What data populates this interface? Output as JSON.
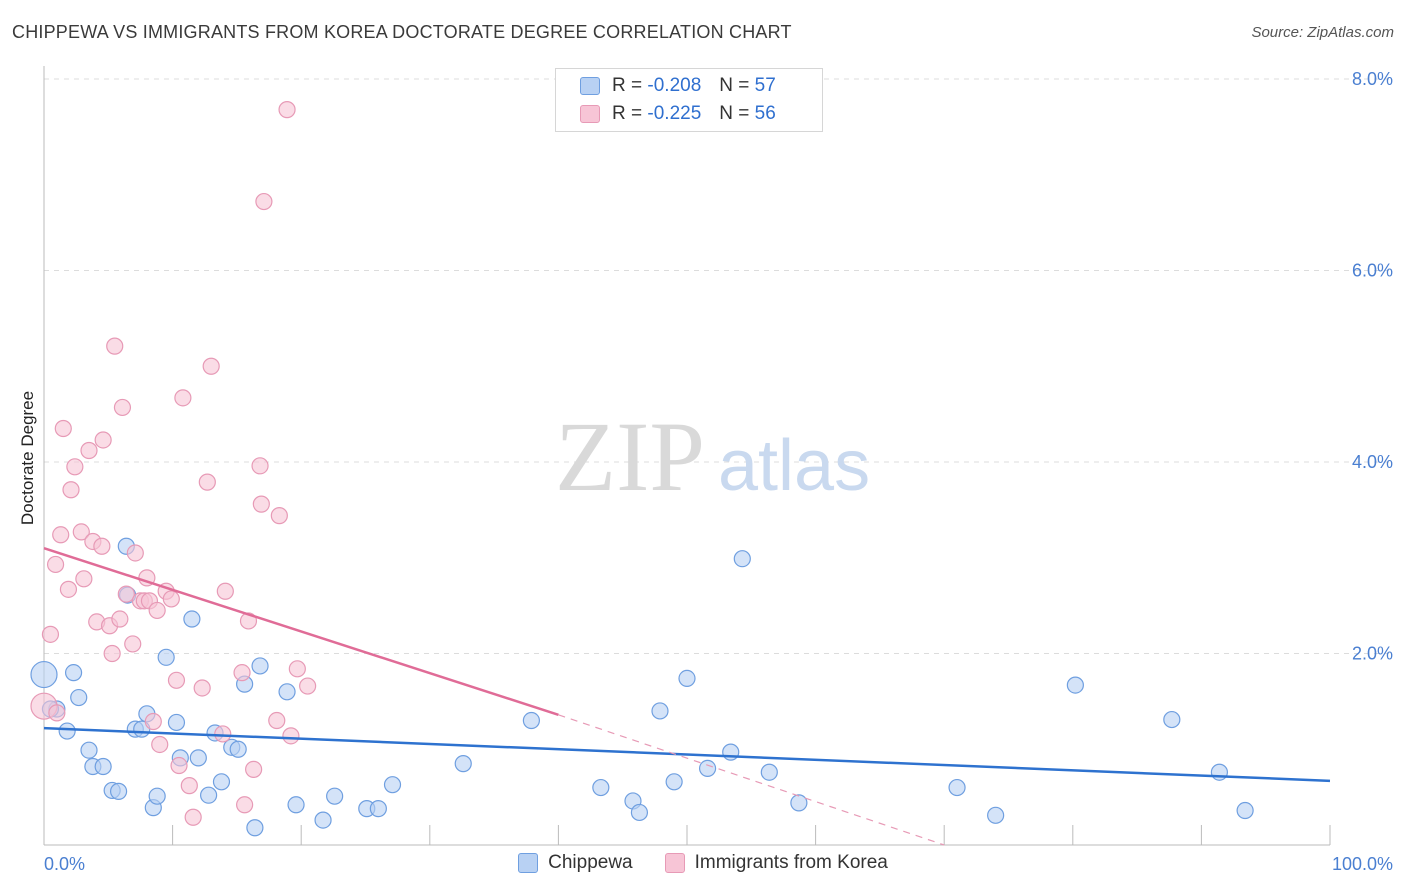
{
  "title": "CHIPPEWA VS IMMIGRANTS FROM KOREA DOCTORATE DEGREE CORRELATION CHART",
  "source": "Source: ZipAtlas.com",
  "watermark": {
    "zip": "ZIP",
    "atlas": "atlas"
  },
  "legend": {
    "rows": [
      {
        "r_label": "R = ",
        "r_value": "-0.208",
        "n_label": "N = ",
        "n_value": "57"
      },
      {
        "r_label": "R = ",
        "r_value": "-0.225",
        "n_label": "N = ",
        "n_value": "56"
      }
    ]
  },
  "chart_data": {
    "type": "scatter",
    "title": "CHIPPEWA VS IMMIGRANTS FROM KOREA DOCTORATE DEGREE CORRELATION CHART",
    "xlabel": "",
    "ylabel": "Doctorate Degree",
    "xlim": [
      0,
      100
    ],
    "ylim": [
      0,
      8.0
    ],
    "x_tick_labels": [
      "0.0%",
      "100.0%"
    ],
    "y_ticks": [
      2.0,
      4.0,
      6.0,
      8.0
    ],
    "y_tick_labels": [
      "2.0%",
      "4.0%",
      "6.0%",
      "8.0%"
    ],
    "grid": true,
    "legend_position": "top-center",
    "series": [
      {
        "name": "Chippewa",
        "color": "#6f9fe0",
        "fill": "#b8d1f3",
        "trend": {
          "x0": 0,
          "y0": 1.22,
          "x1": 100,
          "y1": 0.67
        },
        "points": [
          [
            0.0,
            1.78
          ],
          [
            1.0,
            1.42
          ],
          [
            1.8,
            1.19
          ],
          [
            2.3,
            1.8
          ],
          [
            2.7,
            1.54
          ],
          [
            3.5,
            0.99
          ],
          [
            3.8,
            0.82
          ],
          [
            4.6,
            0.82
          ],
          [
            5.3,
            0.57
          ],
          [
            5.8,
            0.56
          ],
          [
            6.4,
            3.12
          ],
          [
            6.5,
            2.61
          ],
          [
            7.1,
            1.21
          ],
          [
            7.6,
            1.21
          ],
          [
            8.0,
            1.37
          ],
          [
            8.5,
            0.39
          ],
          [
            8.8,
            0.51
          ],
          [
            9.5,
            1.96
          ],
          [
            10.3,
            1.28
          ],
          [
            10.6,
            0.91
          ],
          [
            11.5,
            2.36
          ],
          [
            12.0,
            0.91
          ],
          [
            12.8,
            0.52
          ],
          [
            13.3,
            1.17
          ],
          [
            13.8,
            0.66
          ],
          [
            14.6,
            1.02
          ],
          [
            15.1,
            1.0
          ],
          [
            15.6,
            1.68
          ],
          [
            16.4,
            0.18
          ],
          [
            16.8,
            1.87
          ],
          [
            18.9,
            1.6
          ],
          [
            19.6,
            0.42
          ],
          [
            21.7,
            0.26
          ],
          [
            22.6,
            0.51
          ],
          [
            25.1,
            0.38
          ],
          [
            26.0,
            0.38
          ],
          [
            27.1,
            0.63
          ],
          [
            32.6,
            0.85
          ],
          [
            37.9,
            1.3
          ],
          [
            43.3,
            0.6
          ],
          [
            45.8,
            0.46
          ],
          [
            46.3,
            0.34
          ],
          [
            49.0,
            0.66
          ],
          [
            47.9,
            1.4
          ],
          [
            50.0,
            1.74
          ],
          [
            51.6,
            0.8
          ],
          [
            53.4,
            0.97
          ],
          [
            54.3,
            2.99
          ],
          [
            56.4,
            0.76
          ],
          [
            58.7,
            0.44
          ],
          [
            71.0,
            0.6
          ],
          [
            74.0,
            0.31
          ],
          [
            80.2,
            1.67
          ],
          [
            87.7,
            1.31
          ],
          [
            91.4,
            0.76
          ],
          [
            93.4,
            0.36
          ],
          [
            0.5,
            1.42
          ]
        ]
      },
      {
        "name": "Immigrants from Korea",
        "color": "#e79ab6",
        "fill": "#f7c5d6",
        "trend": {
          "x0": 0,
          "y0": 3.1,
          "x1": 40,
          "y1": 1.36,
          "dash_x1": 70,
          "dash_y1": 0.0
        },
        "points": [
          [
            0.0,
            1.45
          ],
          [
            0.5,
            2.2
          ],
          [
            0.9,
            2.93
          ],
          [
            1.0,
            1.38
          ],
          [
            1.3,
            3.24
          ],
          [
            1.5,
            4.35
          ],
          [
            1.9,
            2.67
          ],
          [
            2.1,
            3.71
          ],
          [
            2.4,
            3.95
          ],
          [
            2.9,
            3.27
          ],
          [
            3.1,
            2.78
          ],
          [
            3.5,
            4.12
          ],
          [
            3.8,
            3.17
          ],
          [
            4.1,
            2.33
          ],
          [
            4.5,
            3.12
          ],
          [
            4.6,
            4.23
          ],
          [
            5.1,
            2.29
          ],
          [
            5.3,
            2.0
          ],
          [
            5.5,
            5.21
          ],
          [
            5.9,
            2.36
          ],
          [
            6.1,
            4.57
          ],
          [
            6.4,
            2.62
          ],
          [
            6.9,
            2.1
          ],
          [
            7.1,
            3.05
          ],
          [
            7.5,
            2.55
          ],
          [
            7.8,
            2.55
          ],
          [
            8.0,
            2.79
          ],
          [
            8.2,
            2.55
          ],
          [
            8.5,
            1.29
          ],
          [
            8.8,
            2.45
          ],
          [
            9.0,
            1.05
          ],
          [
            9.5,
            2.65
          ],
          [
            9.9,
            2.57
          ],
          [
            10.3,
            1.72
          ],
          [
            10.5,
            0.83
          ],
          [
            10.8,
            4.67
          ],
          [
            11.3,
            0.62
          ],
          [
            11.6,
            0.29
          ],
          [
            12.3,
            1.64
          ],
          [
            12.7,
            3.79
          ],
          [
            13.0,
            5.0
          ],
          [
            13.9,
            1.16
          ],
          [
            14.1,
            2.65
          ],
          [
            15.4,
            1.8
          ],
          [
            15.6,
            0.42
          ],
          [
            15.9,
            2.34
          ],
          [
            16.3,
            0.79
          ],
          [
            16.8,
            3.96
          ],
          [
            16.9,
            3.56
          ],
          [
            17.1,
            6.72
          ],
          [
            18.1,
            1.3
          ],
          [
            18.3,
            3.44
          ],
          [
            18.9,
            7.68
          ],
          [
            19.2,
            1.14
          ],
          [
            19.7,
            1.84
          ],
          [
            20.5,
            1.66
          ]
        ]
      }
    ]
  }
}
